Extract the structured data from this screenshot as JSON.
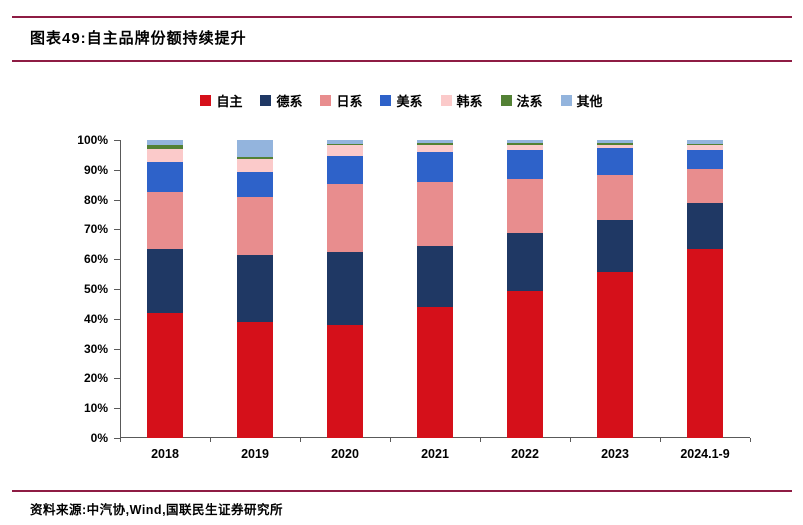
{
  "page": {
    "title": "图表49:自主品牌份额持续提升",
    "source": "资料来源:中汽协,Wind,国联民生证券研究所"
  },
  "colors": {
    "rule": "#8e1c44",
    "axis": "#595959",
    "text": "#000000"
  },
  "chart_data": {
    "type": "bar",
    "stacked": true,
    "percent_stack": true,
    "title": "自主品牌份额持续提升",
    "xlabel": "",
    "ylabel": "",
    "ylim": [
      0,
      100
    ],
    "ytick_step": 10,
    "ytick_suffix": "%",
    "grid": false,
    "legend_position": "top",
    "categories": [
      "2018",
      "2019",
      "2020",
      "2021",
      "2022",
      "2023",
      "2024.1-9"
    ],
    "series": [
      {
        "name": "自主",
        "color": "#d5101a",
        "values": [
          42.0,
          39.0,
          37.8,
          44.0,
          49.5,
          55.7,
          63.5
        ]
      },
      {
        "name": "德系",
        "color": "#1f3864",
        "values": [
          21.5,
          22.5,
          24.6,
          20.6,
          19.4,
          17.3,
          15.4
        ]
      },
      {
        "name": "日系",
        "color": "#e88d8e",
        "values": [
          19.0,
          19.3,
          22.9,
          21.2,
          18.0,
          15.3,
          11.4
        ]
      },
      {
        "name": "美系",
        "color": "#2e62c9",
        "values": [
          10.2,
          8.4,
          9.4,
          10.3,
          9.9,
          8.9,
          6.5
        ]
      },
      {
        "name": "韩系",
        "color": "#fbcaca",
        "values": [
          4.3,
          4.4,
          3.6,
          2.2,
          1.5,
          1.3,
          1.6
        ]
      },
      {
        "name": "法系",
        "color": "#538135",
        "values": [
          1.5,
          0.7,
          0.5,
          0.7,
          0.6,
          0.4,
          0.2
        ]
      },
      {
        "name": "其他",
        "color": "#93b4dd",
        "values": [
          1.5,
          5.7,
          1.2,
          1.0,
          1.1,
          1.1,
          1.4
        ]
      }
    ]
  }
}
